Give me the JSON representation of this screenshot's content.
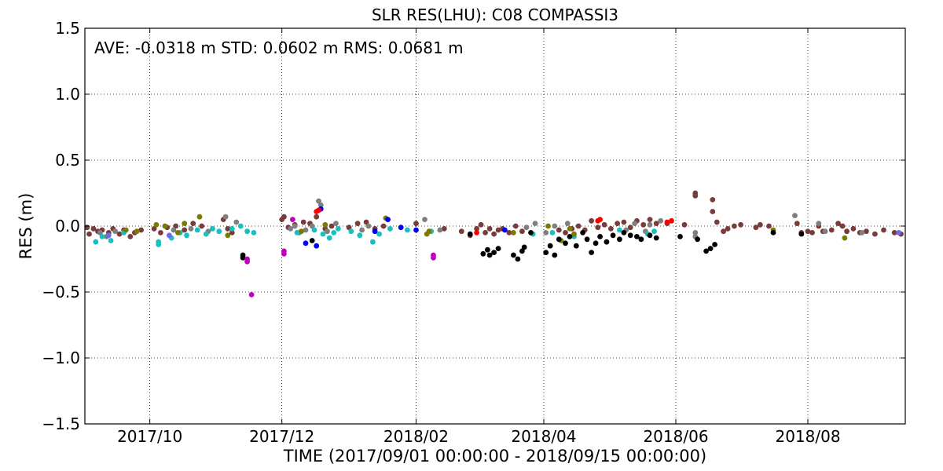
{
  "chart_data": {
    "type": "scatter",
    "title": "SLR RES(LHU): C08 COMPASSI3",
    "stats_text": "AVE: -0.0318 m STD: 0.0602 m RMS: 0.0681 m",
    "xlabel": "TIME  (2017/09/01 00:00:00 - 2018/09/15 00:00:00)",
    "ylabel": "RES (m)",
    "xlim": [
      "2017-09-01",
      "2018-09-15"
    ],
    "ylim": [
      -1.5,
      1.5
    ],
    "x_ticks": [
      {
        "date": "2017-10-01",
        "label": "2017/10"
      },
      {
        "date": "2017-12-01",
        "label": "2017/12"
      },
      {
        "date": "2018-02-01",
        "label": "2018/02"
      },
      {
        "date": "2018-04-01",
        "label": "2018/04"
      },
      {
        "date": "2018-06-01",
        "label": "2018/06"
      },
      {
        "date": "2018-08-01",
        "label": "2018/08"
      }
    ],
    "y_ticks": [
      {
        "value": 1.5,
        "label": "1.5"
      },
      {
        "value": 1.0,
        "label": "1.0"
      },
      {
        "value": 0.5,
        "label": "0.5"
      },
      {
        "value": 0.0,
        "label": "0.0"
      },
      {
        "value": -0.5,
        "label": "−0.5"
      },
      {
        "value": -1.0,
        "label": "−1.0"
      },
      {
        "value": -1.5,
        "label": "−1.5"
      }
    ],
    "grid": true,
    "series": [
      {
        "color": "#7a3b3b",
        "points": [
          [
            "2017-09-02",
            -0.01
          ],
          [
            "2017-09-03",
            -0.06
          ],
          [
            "2017-09-05",
            -0.02
          ],
          [
            "2017-09-07",
            -0.04
          ],
          [
            "2017-09-09",
            -0.03
          ],
          [
            "2017-09-12",
            -0.05
          ],
          [
            "2017-09-14",
            -0.02
          ],
          [
            "2017-09-17",
            -0.06
          ],
          [
            "2017-09-19",
            -0.03
          ],
          [
            "2017-09-22",
            -0.08
          ],
          [
            "2017-09-24",
            -0.05
          ],
          [
            "2017-09-27",
            -0.03
          ],
          [
            "2017-10-03",
            -0.02
          ],
          [
            "2017-10-06",
            -0.05
          ],
          [
            "2017-10-09",
            -0.01
          ],
          [
            "2017-10-13",
            0.0
          ],
          [
            "2017-10-17",
            -0.03
          ],
          [
            "2017-10-21",
            0.02
          ],
          [
            "2017-10-25",
            0.0
          ],
          [
            "2017-11-04",
            0.05
          ],
          [
            "2017-11-06",
            -0.02
          ],
          [
            "2017-11-08",
            -0.05
          ],
          [
            "2017-12-01",
            0.05
          ],
          [
            "2017-12-02",
            0.07
          ],
          [
            "2017-12-04",
            -0.01
          ],
          [
            "2017-12-07",
            0.01
          ],
          [
            "2017-12-11",
            0.03
          ],
          [
            "2017-12-14",
            0.02
          ],
          [
            "2017-12-17",
            0.07
          ],
          [
            "2017-12-21",
            -0.02
          ],
          [
            "2017-12-24",
            0.0
          ],
          [
            "2018-01-01",
            -0.01
          ],
          [
            "2018-01-05",
            0.02
          ],
          [
            "2018-01-09",
            0.03
          ],
          [
            "2018-01-13",
            -0.02
          ],
          [
            "2018-01-17",
            0.0
          ],
          [
            "2018-02-01",
            0.02
          ],
          [
            "2018-02-14",
            -0.02
          ],
          [
            "2018-02-22",
            -0.04
          ],
          [
            "2018-02-26",
            -0.07
          ],
          [
            "2018-03-01",
            -0.02
          ],
          [
            "2018-03-03",
            0.01
          ],
          [
            "2018-03-05",
            -0.05
          ],
          [
            "2018-03-07",
            -0.02
          ],
          [
            "2018-03-09",
            -0.06
          ],
          [
            "2018-03-11",
            -0.03
          ],
          [
            "2018-03-13",
            -0.02
          ],
          [
            "2018-03-16",
            -0.05
          ],
          [
            "2018-03-19",
            0.0
          ],
          [
            "2018-03-22",
            -0.04
          ],
          [
            "2018-04-08",
            -0.03
          ],
          [
            "2018-04-11",
            -0.05
          ],
          [
            "2018-04-14",
            -0.02
          ],
          [
            "2018-04-17",
            0.0
          ],
          [
            "2018-04-20",
            -0.03
          ],
          [
            "2018-04-23",
            0.04
          ],
          [
            "2018-04-26",
            -0.01
          ],
          [
            "2018-04-29",
            0.01
          ],
          [
            "2018-05-02",
            -0.02
          ],
          [
            "2018-05-05",
            0.02
          ],
          [
            "2018-05-08",
            0.03
          ],
          [
            "2018-05-11",
            -0.01
          ],
          [
            "2018-05-14",
            0.04
          ],
          [
            "2018-05-17",
            0.01
          ],
          [
            "2018-05-20",
            0.05
          ],
          [
            "2018-05-23",
            0.02
          ],
          [
            "2018-05-28",
            0.02
          ],
          [
            "2018-06-05",
            0.01
          ],
          [
            "2018-06-10",
            0.25
          ],
          [
            "2018-06-10",
            0.23
          ],
          [
            "2018-06-18",
            0.2
          ],
          [
            "2018-06-18",
            0.11
          ],
          [
            "2018-06-20",
            0.03
          ],
          [
            "2018-06-23",
            -0.04
          ],
          [
            "2018-06-25",
            -0.02
          ],
          [
            "2018-06-28",
            0.0
          ],
          [
            "2018-07-01",
            0.01
          ],
          [
            "2018-07-08",
            -0.01
          ],
          [
            "2018-07-10",
            0.01
          ],
          [
            "2018-07-14",
            0.0
          ],
          [
            "2018-07-27",
            0.02
          ],
          [
            "2018-07-29",
            -0.05
          ],
          [
            "2018-08-01",
            -0.04
          ],
          [
            "2018-08-03",
            -0.05
          ],
          [
            "2018-08-06",
            0.0
          ],
          [
            "2018-08-08",
            -0.04
          ],
          [
            "2018-08-12",
            -0.03
          ],
          [
            "2018-08-15",
            0.02
          ],
          [
            "2018-08-17",
            0.0
          ],
          [
            "2018-08-19",
            -0.04
          ],
          [
            "2018-08-22",
            -0.02
          ],
          [
            "2018-08-25",
            -0.05
          ],
          [
            "2018-08-28",
            -0.04
          ],
          [
            "2018-09-01",
            -0.06
          ],
          [
            "2018-09-05",
            -0.03
          ],
          [
            "2018-09-10",
            -0.05
          ],
          [
            "2018-09-13",
            -0.06
          ]
        ]
      },
      {
        "color": "#7f7f7f",
        "points": [
          [
            "2017-09-08",
            -0.05
          ],
          [
            "2017-09-11",
            -0.08
          ],
          [
            "2017-09-15",
            -0.04
          ],
          [
            "2017-10-12",
            -0.03
          ],
          [
            "2017-10-20",
            -0.02
          ],
          [
            "2017-10-28",
            -0.04
          ],
          [
            "2017-11-05",
            0.07
          ],
          [
            "2017-11-10",
            0.03
          ],
          [
            "2017-12-05",
            -0.02
          ],
          [
            "2017-12-07",
            0.0
          ],
          [
            "2017-12-09",
            -0.05
          ],
          [
            "2017-12-12",
            -0.03
          ],
          [
            "2017-12-15",
            0.0
          ],
          [
            "2017-12-18",
            0.19
          ],
          [
            "2017-12-19",
            0.16
          ],
          [
            "2017-12-22",
            -0.04
          ],
          [
            "2017-12-26",
            0.02
          ],
          [
            "2018-01-07",
            -0.03
          ],
          [
            "2018-01-10",
            0.0
          ],
          [
            "2018-02-05",
            0.05
          ],
          [
            "2018-02-12",
            -0.03
          ],
          [
            "2018-03-24",
            -0.01
          ],
          [
            "2018-03-28",
            0.02
          ],
          [
            "2018-04-02",
            -0.05
          ],
          [
            "2018-04-06",
            0.0
          ],
          [
            "2018-04-12",
            0.02
          ],
          [
            "2018-05-09",
            -0.03
          ],
          [
            "2018-05-13",
            0.02
          ],
          [
            "2018-05-18",
            -0.04
          ],
          [
            "2018-05-20",
            0.01
          ],
          [
            "2018-05-25",
            0.04
          ],
          [
            "2018-06-10",
            -0.05
          ],
          [
            "2018-06-10",
            -0.08
          ],
          [
            "2018-07-26",
            0.08
          ],
          [
            "2018-08-06",
            0.02
          ],
          [
            "2018-08-09",
            -0.04
          ],
          [
            "2018-08-26",
            -0.05
          ]
        ]
      },
      {
        "color": "#17bfbf",
        "points": [
          [
            "2017-09-06",
            -0.12
          ],
          [
            "2017-09-09",
            -0.08
          ],
          [
            "2017-09-13",
            -0.11
          ],
          [
            "2017-09-19",
            -0.05
          ],
          [
            "2017-10-05",
            -0.14
          ],
          [
            "2017-10-05",
            -0.12
          ],
          [
            "2017-10-11",
            -0.09
          ],
          [
            "2017-10-15",
            -0.05
          ],
          [
            "2017-10-18",
            -0.07
          ],
          [
            "2017-10-23",
            -0.03
          ],
          [
            "2017-10-27",
            -0.06
          ],
          [
            "2017-10-30",
            -0.02
          ],
          [
            "2017-11-02",
            -0.04
          ],
          [
            "2017-11-08",
            -0.02
          ],
          [
            "2017-11-12",
            0.0
          ],
          [
            "2017-11-15",
            -0.04
          ],
          [
            "2017-11-18",
            -0.05
          ],
          [
            "2017-12-08",
            -0.05
          ],
          [
            "2017-12-16",
            -0.03
          ],
          [
            "2017-12-20",
            -0.06
          ],
          [
            "2017-12-23",
            -0.09
          ],
          [
            "2017-12-25",
            -0.05
          ],
          [
            "2017-12-27",
            -0.02
          ],
          [
            "2018-01-02",
            -0.04
          ],
          [
            "2018-01-06",
            -0.07
          ],
          [
            "2018-01-12",
            -0.12
          ],
          [
            "2018-01-15",
            -0.06
          ],
          [
            "2018-01-20",
            -0.02
          ],
          [
            "2018-01-28",
            -0.03
          ],
          [
            "2018-02-08",
            -0.04
          ],
          [
            "2018-03-27",
            -0.06
          ],
          [
            "2018-04-05",
            -0.05
          ],
          [
            "2018-04-15",
            -0.08
          ],
          [
            "2018-05-06",
            -0.03
          ],
          [
            "2018-05-19",
            -0.06
          ],
          [
            "2018-05-22",
            -0.04
          ]
        ]
      },
      {
        "color": "#7a7a00",
        "points": [
          [
            "2017-09-20",
            -0.03
          ],
          [
            "2017-09-25",
            -0.04
          ],
          [
            "2017-10-04",
            0.01
          ],
          [
            "2017-10-08",
            0.0
          ],
          [
            "2017-10-14",
            -0.05
          ],
          [
            "2017-10-17",
            0.02
          ],
          [
            "2017-10-24",
            0.07
          ],
          [
            "2017-11-06",
            -0.07
          ],
          [
            "2017-12-10",
            -0.04
          ],
          [
            "2017-12-21",
            0.01
          ],
          [
            "2018-01-18",
            0.06
          ],
          [
            "2018-02-06",
            -0.06
          ],
          [
            "2018-02-07",
            -0.04
          ],
          [
            "2018-03-18",
            -0.05
          ],
          [
            "2018-04-03",
            0.0
          ],
          [
            "2018-04-09",
            -0.11
          ],
          [
            "2018-04-13",
            -0.02
          ],
          [
            "2018-04-15",
            -0.06
          ],
          [
            "2018-07-16",
            -0.03
          ],
          [
            "2018-08-18",
            -0.09
          ]
        ]
      },
      {
        "color": "#000000",
        "points": [
          [
            "2017-11-13",
            -0.22
          ],
          [
            "2017-11-13",
            -0.24
          ],
          [
            "2017-12-15",
            -0.11
          ],
          [
            "2018-02-26",
            -0.06
          ],
          [
            "2018-03-04",
            -0.21
          ],
          [
            "2018-03-06",
            -0.18
          ],
          [
            "2018-03-07",
            -0.22
          ],
          [
            "2018-03-09",
            -0.2
          ],
          [
            "2018-03-11",
            -0.17
          ],
          [
            "2018-03-18",
            -0.22
          ],
          [
            "2018-03-20",
            -0.25
          ],
          [
            "2018-03-22",
            -0.19
          ],
          [
            "2018-03-23",
            -0.16
          ],
          [
            "2018-03-26",
            -0.05
          ],
          [
            "2018-04-02",
            -0.2
          ],
          [
            "2018-04-04",
            -0.15
          ],
          [
            "2018-04-06",
            -0.22
          ],
          [
            "2018-04-08",
            -0.1
          ],
          [
            "2018-04-11",
            -0.13
          ],
          [
            "2018-04-13",
            -0.08
          ],
          [
            "2018-04-16",
            -0.15
          ],
          [
            "2018-04-19",
            -0.05
          ],
          [
            "2018-04-21",
            -0.1
          ],
          [
            "2018-04-23",
            -0.2
          ],
          [
            "2018-04-25",
            -0.13
          ],
          [
            "2018-04-27",
            -0.08
          ],
          [
            "2018-04-30",
            -0.12
          ],
          [
            "2018-05-03",
            -0.07
          ],
          [
            "2018-05-06",
            -0.1
          ],
          [
            "2018-05-08",
            -0.05
          ],
          [
            "2018-05-11",
            -0.07
          ],
          [
            "2018-05-14",
            -0.08
          ],
          [
            "2018-05-16",
            -0.1
          ],
          [
            "2018-05-20",
            -0.07
          ],
          [
            "2018-05-23",
            -0.09
          ],
          [
            "2018-06-03",
            -0.08
          ],
          [
            "2018-06-11",
            -0.1
          ],
          [
            "2018-06-15",
            -0.19
          ],
          [
            "2018-06-17",
            -0.17
          ],
          [
            "2018-06-19",
            -0.14
          ],
          [
            "2018-07-16",
            -0.05
          ],
          [
            "2018-07-29",
            -0.06
          ]
        ]
      },
      {
        "color": "#0000ff",
        "points": [
          [
            "2017-12-12",
            -0.13
          ],
          [
            "2017-12-17",
            -0.15
          ],
          [
            "2017-12-19",
            0.13
          ],
          [
            "2018-01-13",
            -0.04
          ],
          [
            "2018-01-19",
            0.05
          ],
          [
            "2018-01-25",
            -0.01
          ],
          [
            "2018-02-01",
            -0.03
          ],
          [
            "2018-03-14",
            -0.03
          ]
        ]
      },
      {
        "color": "#bf00bf",
        "points": [
          [
            "2017-11-15",
            -0.27
          ],
          [
            "2017-11-15",
            -0.25
          ],
          [
            "2017-11-17",
            -0.52
          ],
          [
            "2017-12-02",
            -0.19
          ],
          [
            "2017-12-02",
            -0.21
          ],
          [
            "2017-12-06",
            0.05
          ],
          [
            "2018-02-09",
            -0.22
          ],
          [
            "2018-02-09",
            -0.24
          ]
        ]
      },
      {
        "color": "#ff0000",
        "points": [
          [
            "2017-12-17",
            0.11
          ],
          [
            "2017-12-18",
            0.12
          ],
          [
            "2018-03-01",
            -0.05
          ],
          [
            "2018-04-26",
            0.04
          ],
          [
            "2018-04-27",
            0.05
          ],
          [
            "2018-05-28",
            0.03
          ],
          [
            "2018-05-30",
            0.04
          ]
        ]
      },
      {
        "color": "#6b6bf0",
        "points": [
          [
            "2017-09-12",
            -0.07
          ],
          [
            "2017-10-10",
            -0.07
          ],
          [
            "2018-09-12",
            -0.05
          ]
        ]
      }
    ]
  }
}
